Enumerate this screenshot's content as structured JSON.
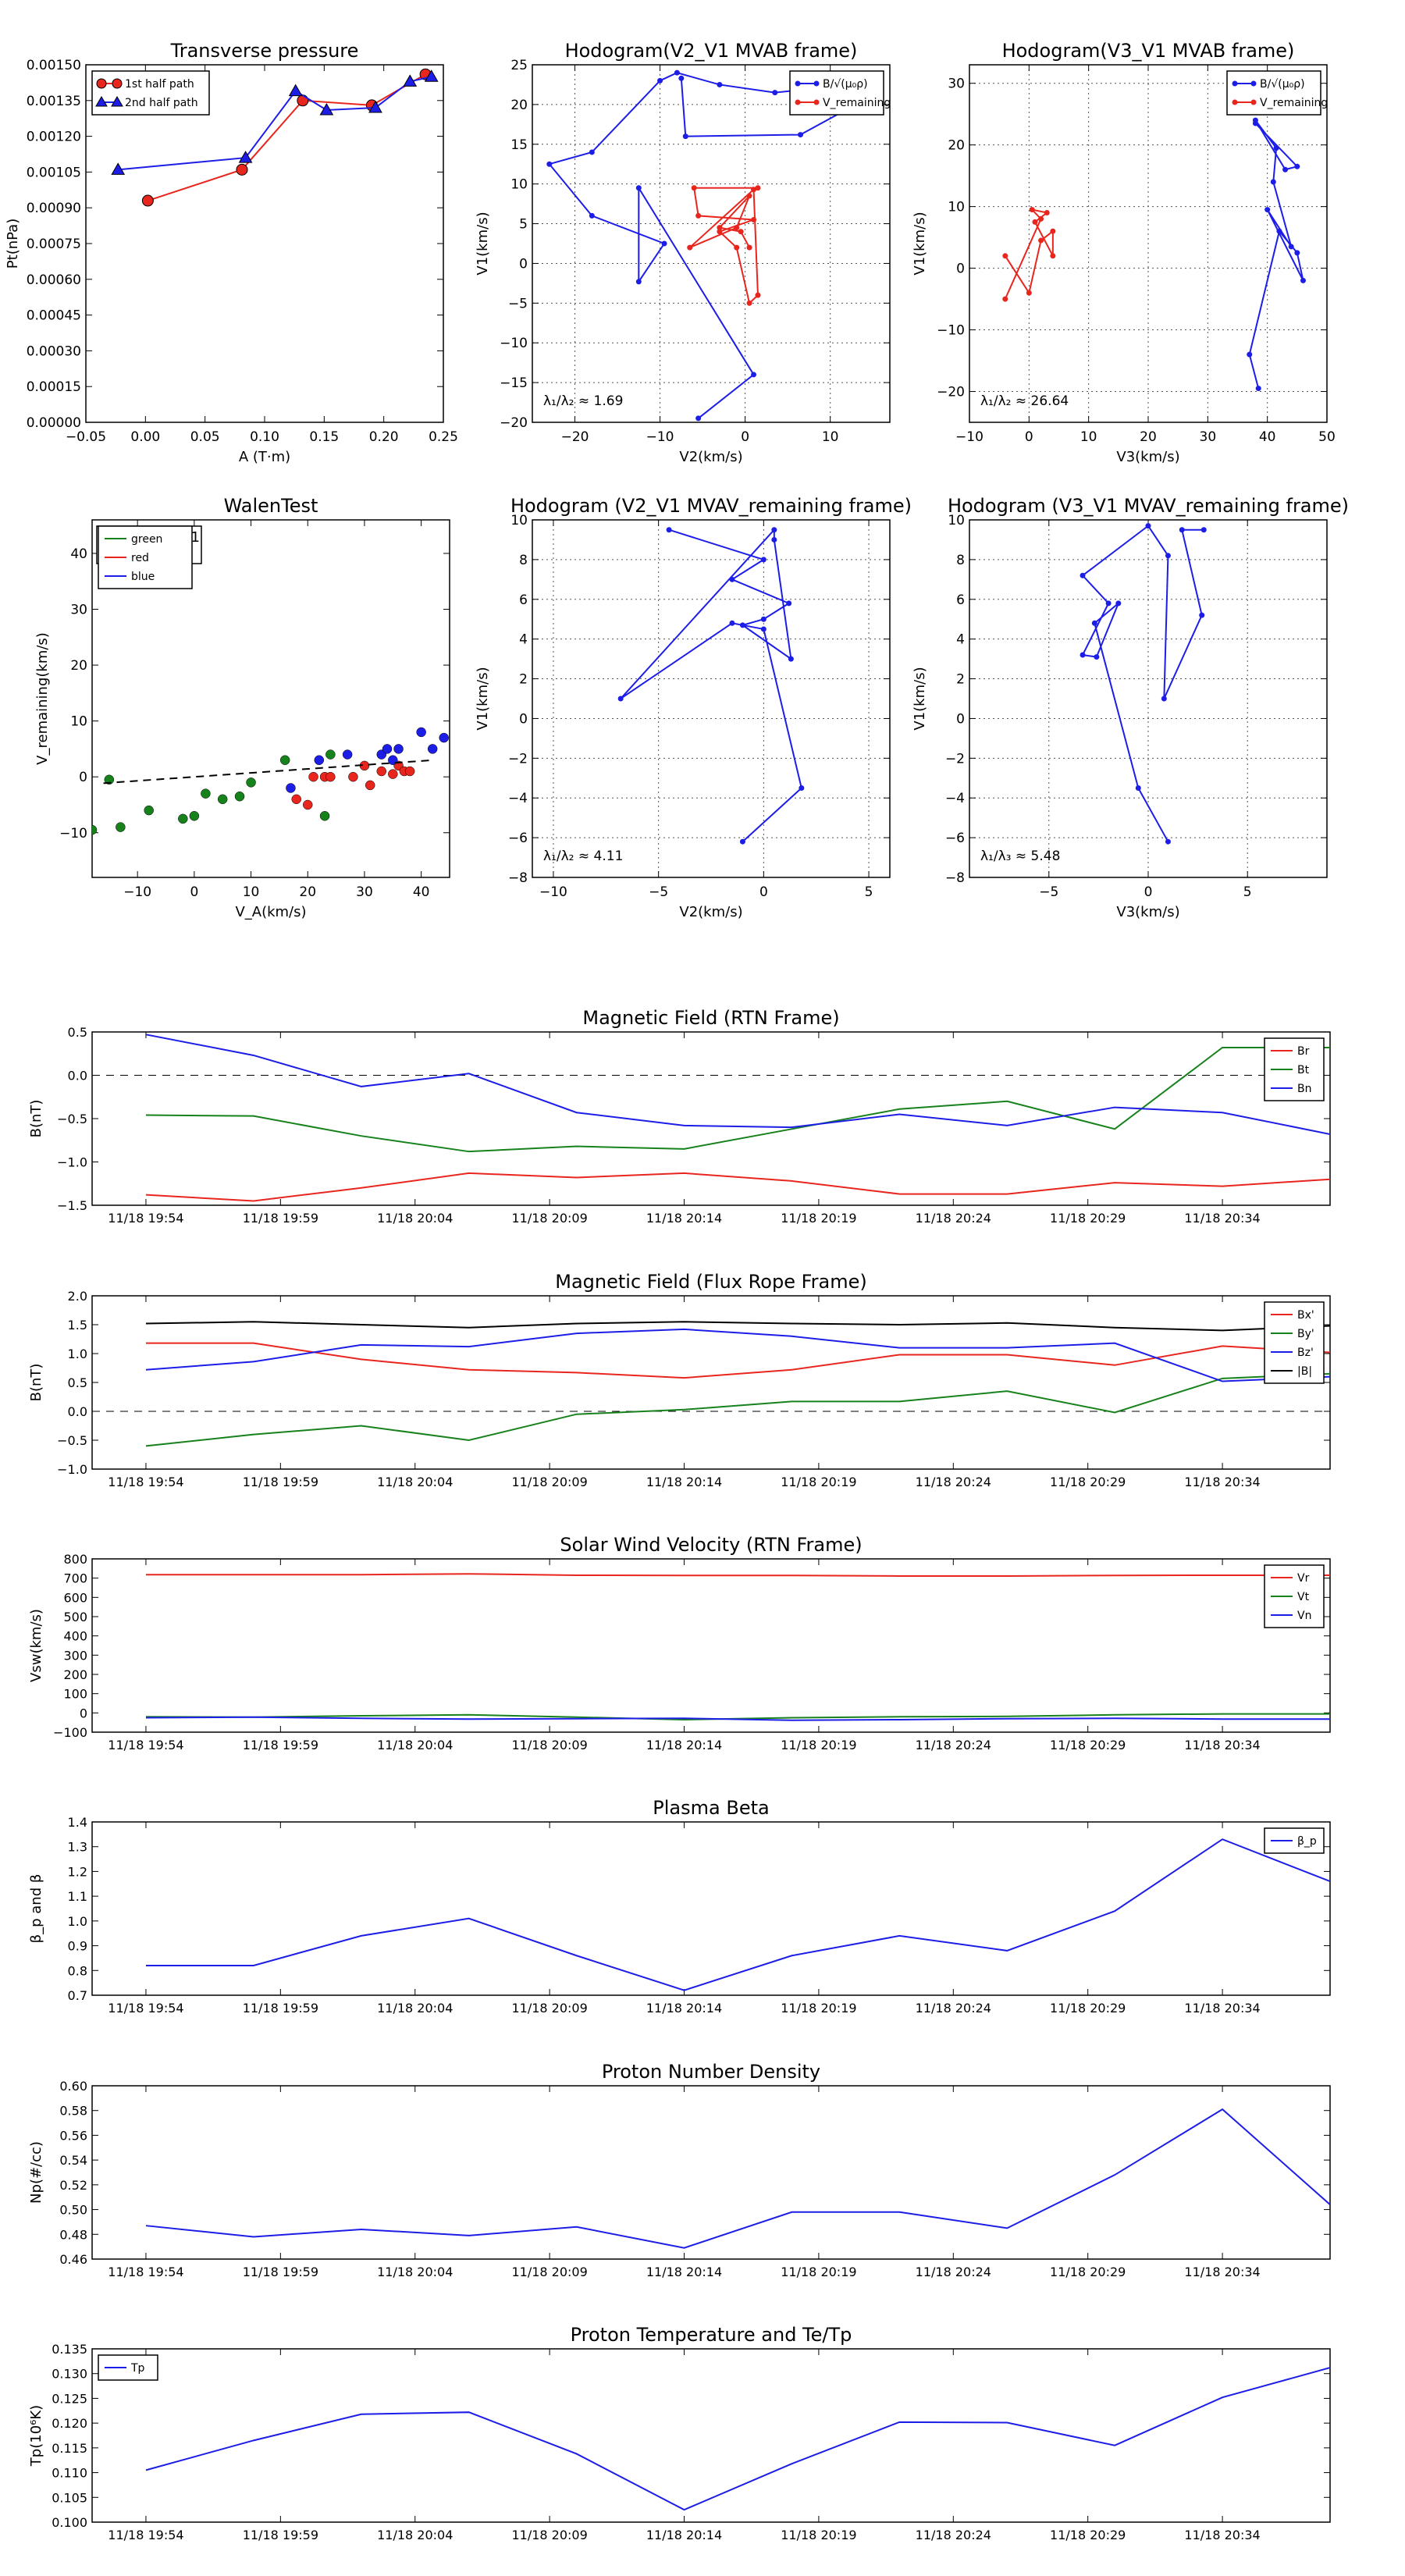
{
  "colors": {
    "red": "#e8261e",
    "green": "#17821c",
    "blue": "#1d1de8",
    "black": "#000000",
    "grid": "#555555"
  },
  "chart_data": [
    {
      "id": "transverse_pressure",
      "type": "line",
      "title": "Transverse pressure",
      "xlabel": "A (T·m)",
      "ylabel": "Pt(nPa)",
      "xlim": [
        -0.05,
        0.25
      ],
      "ylim": [
        0,
        0.0015
      ],
      "xticks": [
        -0.05,
        0.0,
        0.05,
        0.1,
        0.15,
        0.2,
        0.25
      ],
      "xtick_decimals": 2,
      "yticks": [
        0,
        0.00015,
        0.0003,
        0.00045,
        0.0006,
        0.00075,
        0.0009,
        0.00105,
        0.0012,
        0.00135,
        0.0015
      ],
      "ytick_decimals": 5,
      "grid": false,
      "legend": "top-left",
      "series": [
        {
          "name": "1st half path",
          "color": "red",
          "marker": "circle",
          "x": [
            0.002,
            0.081,
            0.132,
            0.19,
            0.235
          ],
          "y": [
            0.00093,
            0.00106,
            0.00135,
            0.00133,
            0.00146
          ]
        },
        {
          "name": "2nd half path",
          "color": "blue",
          "marker": "triangle",
          "x": [
            -0.023,
            0.084,
            0.126,
            0.152,
            0.193,
            0.222,
            0.24
          ],
          "y": [
            0.00106,
            0.00111,
            0.00139,
            0.00131,
            0.00132,
            0.00143,
            0.00145
          ]
        }
      ]
    },
    {
      "id": "hodogram_v2v1_mvab",
      "type": "line",
      "title": "Hodogram(V2_V1 MVAB frame)",
      "xlabel": "V2(km/s)",
      "ylabel": "V1(km/s)",
      "xlim": [
        -25,
        17
      ],
      "ylim": [
        -20,
        25
      ],
      "xticks": [
        -20,
        -10,
        0,
        10
      ],
      "yticks": [
        -20,
        -15,
        -10,
        -5,
        0,
        5,
        10,
        15,
        20,
        25
      ],
      "grid": true,
      "legend": "top-right",
      "annotation": "λ₁/λ₂ ≈ 1.69",
      "series": [
        {
          "name": "B/√(μ₀ρ)",
          "color": "blue",
          "marker": "dot",
          "x": [
            -7.5,
            -7.0,
            6.5,
            13.0,
            8.0,
            3.5,
            -3.0,
            -8.0,
            -10.0,
            -18.0,
            -23.0,
            -18.0,
            -9.5,
            -12.5,
            -12.5,
            1.0,
            -5.5
          ],
          "y": [
            23.3,
            16.0,
            16.2,
            20.0,
            22.0,
            21.5,
            22.5,
            24.0,
            23.0,
            14.0,
            12.5,
            6.0,
            2.5,
            -2.3,
            9.5,
            -14.0,
            -19.5
          ]
        },
        {
          "name": "V_remaining",
          "color": "red",
          "marker": "dot",
          "x": [
            1.5,
            -6.0,
            -5.5,
            1.0,
            -3.0,
            -1.0,
            0.5,
            1.5,
            1.0,
            -6.5,
            -1.0,
            0.5,
            -3.0,
            -0.5,
            0.5
          ],
          "y": [
            9.5,
            9.5,
            6.0,
            5.5,
            4.0,
            2.0,
            -5.0,
            -4.0,
            9.3,
            2.0,
            4.5,
            8.5,
            4.5,
            4.0,
            2.0
          ]
        }
      ]
    },
    {
      "id": "hodogram_v3v1_mvab",
      "type": "line",
      "title": "Hodogram(V3_V1 MVAB frame)",
      "xlabel": "V3(km/s)",
      "ylabel": "V1(km/s)",
      "xlim": [
        -10,
        50
      ],
      "ylim": [
        -25,
        33
      ],
      "xticks": [
        -10,
        0,
        10,
        20,
        30,
        40,
        50
      ],
      "yticks": [
        -20,
        -10,
        0,
        10,
        20,
        30
      ],
      "grid": true,
      "legend": "top-right",
      "annotation": "λ₁/λ₂ ≈ 26.64",
      "series": [
        {
          "name": "B/√(μ₀ρ)",
          "color": "blue",
          "marker": "dot",
          "x": [
            38,
            45,
            43,
            38,
            41.5,
            41,
            44,
            40,
            46,
            45,
            42,
            37,
            38.5
          ],
          "y": [
            23.5,
            16.5,
            16,
            24,
            19.5,
            14,
            3.5,
            9.5,
            -2,
            2.5,
            6,
            -14,
            -19.5
          ]
        },
        {
          "name": "V_remaining",
          "color": "red",
          "marker": "dot",
          "x": [
            -4,
            2,
            0.5,
            3,
            1,
            4,
            4,
            2,
            0,
            -4
          ],
          "y": [
            -5,
            8,
            9.5,
            9,
            7.5,
            2,
            6,
            4.5,
            -4,
            2
          ]
        }
      ]
    },
    {
      "id": "walen_test",
      "type": "scatter",
      "title": "WalenTest",
      "xlabel": "V_A(km/s)",
      "ylabel": "V_remaining(km/s)",
      "xlim": [
        -18,
        45
      ],
      "ylim": [
        -18,
        46
      ],
      "xticks": [
        -10,
        0,
        10,
        20,
        30,
        40
      ],
      "yticks": [
        -10,
        0,
        10,
        20,
        30,
        40
      ],
      "grid": false,
      "legend": "top-left",
      "stats_lines": [
        "slope = 0.071",
        "r = 0.435"
      ],
      "fit": {
        "slope": 0.071,
        "x_range": [
          -16,
          42
        ],
        "style": "dashed"
      },
      "series": [
        {
          "name": "green",
          "color": "green",
          "x": [
            -18,
            -15,
            -13,
            -8,
            -2,
            0,
            2,
            5,
            8,
            10,
            16,
            23,
            24
          ],
          "y": [
            -9.5,
            -0.5,
            -9,
            -6,
            -7.5,
            -7,
            -3,
            -4,
            -3.5,
            -1,
            3,
            -7,
            4
          ]
        },
        {
          "name": "red",
          "color": "red",
          "x": [
            18,
            20,
            21,
            23,
            24,
            28,
            30,
            31,
            33,
            35,
            36,
            37,
            38
          ],
          "y": [
            -4,
            -5,
            0,
            0,
            0,
            0,
            2,
            -1.5,
            1,
            0.5,
            2,
            1,
            1
          ]
        },
        {
          "name": "blue",
          "color": "blue",
          "x": [
            17,
            22,
            27,
            33,
            34,
            35,
            36,
            40,
            42,
            44
          ],
          "y": [
            -2,
            3,
            4,
            4,
            5,
            3,
            5,
            8,
            5,
            7
          ]
        }
      ]
    },
    {
      "id": "hodogram_v2v1_mvav",
      "type": "line",
      "title": "Hodogram (V2_V1 MVAV_remaining frame)",
      "xlabel": "V2(km/s)",
      "ylabel": "V1(km/s)",
      "xlim": [
        -11,
        6
      ],
      "ylim": [
        -8,
        10
      ],
      "xticks": [
        -10,
        -5,
        0,
        5
      ],
      "yticks": [
        -8,
        -6,
        -4,
        -2,
        0,
        2,
        4,
        6,
        8,
        10
      ],
      "grid": true,
      "annotation": "λ₁/λ₂ ≈ 4.11",
      "series": [
        {
          "name": "V",
          "color": "blue",
          "marker": "dot",
          "x": [
            -4.5,
            0,
            -1.5,
            1.2,
            0,
            -1,
            1.3,
            0.5,
            0.5,
            -6.8,
            -1.5,
            0,
            1.8,
            -1
          ],
          "y": [
            9.5,
            8,
            7,
            5.8,
            5,
            4.7,
            3,
            9,
            9.5,
            1,
            4.8,
            4.5,
            -3.5,
            -6.2
          ]
        }
      ]
    },
    {
      "id": "hodogram_v3v1_mvav",
      "type": "line",
      "title": "Hodogram (V3_V1 MVAV_remaining frame)",
      "xlabel": "V3(km/s)",
      "ylabel": "V1(km/s)",
      "xlim": [
        -9,
        9
      ],
      "ylim": [
        -8,
        10
      ],
      "xticks": [
        -5,
        0,
        5
      ],
      "yticks": [
        -8,
        -6,
        -4,
        -2,
        0,
        2,
        4,
        6,
        8,
        10
      ],
      "grid": true,
      "annotation": "λ₁/λ₃ ≈ 5.48",
      "series": [
        {
          "name": "V",
          "color": "blue",
          "marker": "dot",
          "x": [
            2.8,
            1.7,
            2.7,
            0.8,
            1.0,
            0,
            -3.3,
            -2.0,
            -3.3,
            -2.6,
            -1.5,
            -2.7,
            -0.5,
            1
          ],
          "y": [
            9.5,
            9.5,
            5.2,
            1,
            8.2,
            9.7,
            7.2,
            5.8,
            3.2,
            3.1,
            5.8,
            4.8,
            -3.5,
            -6.2
          ]
        }
      ]
    },
    {
      "id": "magnetic_field_rtn",
      "type": "line",
      "title": "Magnetic Field (RTN Frame)",
      "ylabel": "B(nT)",
      "ylim": [
        -1.5,
        0.5
      ],
      "yticks": [
        -1.5,
        -1.0,
        -0.5,
        0.0,
        0.5
      ],
      "ytick_decimals": 1,
      "zero_line": true,
      "legend": "top-right",
      "series": [
        {
          "name": "Br",
          "color": "red",
          "values": [
            -1.38,
            -1.45,
            -1.3,
            -1.13,
            -1.18,
            -1.13,
            -1.22,
            -1.37,
            -1.37,
            -1.24,
            -1.28,
            -1.2
          ]
        },
        {
          "name": "Bt",
          "color": "green",
          "values": [
            -0.46,
            -0.47,
            -0.7,
            -0.88,
            -0.82,
            -0.85,
            -0.62,
            -0.39,
            -0.3,
            -0.62,
            0.32,
            0.32
          ]
        },
        {
          "name": "Bn",
          "color": "blue",
          "values": [
            0.47,
            0.23,
            -0.13,
            0.02,
            -0.43,
            -0.58,
            -0.6,
            -0.45,
            -0.58,
            -0.37,
            -0.43,
            -0.68
          ]
        }
      ]
    },
    {
      "id": "magnetic_field_flux_rope",
      "type": "line",
      "title": "Magnetic Field (Flux Rope Frame)",
      "ylabel": "B(nT)",
      "ylim": [
        -1.0,
        2.0
      ],
      "yticks": [
        -1.0,
        -0.5,
        0.0,
        0.5,
        1.0,
        1.5,
        2.0
      ],
      "ytick_decimals": 1,
      "zero_line": true,
      "legend": "top-right",
      "series": [
        {
          "name": "Bx'",
          "color": "red",
          "values": [
            1.18,
            1.18,
            0.9,
            0.72,
            0.67,
            0.58,
            0.72,
            0.98,
            0.98,
            0.8,
            1.13,
            1.02
          ]
        },
        {
          "name": "By'",
          "color": "green",
          "values": [
            -0.6,
            -0.4,
            -0.25,
            -0.5,
            -0.05,
            0.03,
            0.17,
            0.17,
            0.35,
            -0.02,
            0.57,
            0.65
          ]
        },
        {
          "name": "Bz'",
          "color": "blue",
          "values": [
            0.72,
            0.86,
            1.15,
            1.12,
            1.35,
            1.42,
            1.3,
            1.1,
            1.1,
            1.18,
            0.52,
            0.6
          ]
        },
        {
          "name": "|B|",
          "color": "black",
          "values": [
            1.52,
            1.55,
            1.5,
            1.45,
            1.52,
            1.55,
            1.52,
            1.5,
            1.53,
            1.45,
            1.4,
            1.48
          ]
        }
      ]
    },
    {
      "id": "solar_wind_velocity",
      "type": "line",
      "title": "Solar Wind Velocity (RTN Frame)",
      "ylabel": "Vsw(km/s)",
      "ylim": [
        -100,
        800
      ],
      "yticks": [
        -100,
        0,
        100,
        200,
        300,
        400,
        500,
        600,
        700,
        800
      ],
      "ytick_decimals": 0,
      "legend": "top-right",
      "series": [
        {
          "name": "Vr",
          "color": "red",
          "values": [
            718,
            718,
            718,
            722,
            715,
            714,
            714,
            711,
            711,
            714,
            715,
            715
          ]
        },
        {
          "name": "Vt",
          "color": "green",
          "values": [
            -20,
            -22,
            -15,
            -10,
            -22,
            -35,
            -25,
            -20,
            -18,
            -10,
            -5,
            -5
          ]
        },
        {
          "name": "Vn",
          "color": "blue",
          "values": [
            -25,
            -22,
            -28,
            -32,
            -30,
            -28,
            -38,
            -35,
            -30,
            -28,
            -32,
            -32
          ]
        }
      ]
    },
    {
      "id": "plasma_beta",
      "type": "line",
      "title": "Plasma Beta",
      "ylabel": "β_p and β",
      "ylim": [
        0.7,
        1.4
      ],
      "yticks": [
        0.7,
        0.8,
        0.9,
        1.0,
        1.1,
        1.2,
        1.3,
        1.4
      ],
      "ytick_decimals": 1,
      "legend": "top-right",
      "series": [
        {
          "name": "β_p",
          "color": "blue",
          "values": [
            0.82,
            0.82,
            0.94,
            1.01,
            0.86,
            0.72,
            0.86,
            0.94,
            0.88,
            1.04,
            1.33,
            1.16
          ]
        }
      ]
    },
    {
      "id": "proton_density",
      "type": "line",
      "title": "Proton Number Density",
      "ylabel": "Np(#/cc)",
      "ylim": [
        0.46,
        0.6
      ],
      "yticks": [
        0.46,
        0.48,
        0.5,
        0.52,
        0.54,
        0.56,
        0.58,
        0.6
      ],
      "ytick_decimals": 2,
      "series": [
        {
          "name": "Np",
          "color": "blue",
          "values": [
            0.487,
            0.478,
            0.484,
            0.479,
            0.486,
            0.469,
            0.498,
            0.498,
            0.485,
            0.528,
            0.581,
            0.504
          ]
        }
      ]
    },
    {
      "id": "proton_temperature",
      "type": "line",
      "title": "Proton Temperature and Te/Tp",
      "ylabel": "Tp(10⁶K)",
      "ylim": [
        0.1,
        0.135
      ],
      "yticks": [
        0.1,
        0.105,
        0.11,
        0.115,
        0.12,
        0.125,
        0.13,
        0.135
      ],
      "ytick_decimals": 3,
      "legend": "top-left",
      "series": [
        {
          "name": "Tp",
          "color": "blue",
          "values": [
            0.1105,
            0.1165,
            0.1218,
            0.1222,
            0.1138,
            0.1025,
            0.1118,
            0.1202,
            0.1201,
            0.1155,
            0.1252,
            0.1312
          ]
        }
      ]
    }
  ],
  "time_axis": {
    "tick_labels": [
      "11/18 19:54",
      "11/18 19:59",
      "11/18 20:04",
      "11/18 20:09",
      "11/18 20:14",
      "11/18 20:19",
      "11/18 20:24",
      "11/18 20:29",
      "11/18 20:34"
    ],
    "sample_times": [
      "19:54",
      "19:58",
      "20:02",
      "20:06",
      "20:10",
      "20:14",
      "20:18",
      "20:22",
      "20:26",
      "20:30",
      "20:34",
      "20:38"
    ]
  }
}
